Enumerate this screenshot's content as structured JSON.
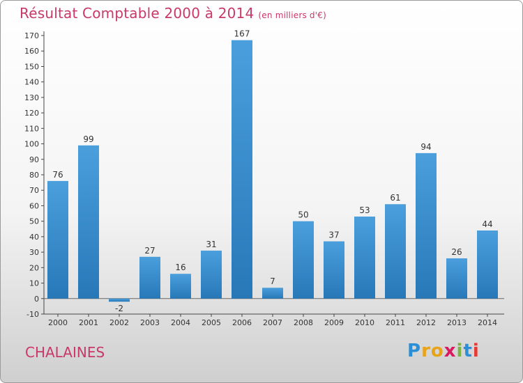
{
  "header": {
    "title": "Résultat Comptable 2000 à 2014",
    "unit": "(en milliers d'€)"
  },
  "footer": {
    "city": "CHALAINES",
    "logo_letters": [
      "P",
      "r",
      "o",
      "x",
      "i",
      "t",
      "i"
    ],
    "logo_colors": [
      "#2a8fd6",
      "#e8a317",
      "#e8a317",
      "#d81b60",
      "#7cb342",
      "#2a8fd6",
      "#e53935"
    ]
  },
  "chart_data": {
    "type": "bar",
    "categories": [
      "2000",
      "2001",
      "2002",
      "2003",
      "2004",
      "2005",
      "2006",
      "2007",
      "2008",
      "2009",
      "2010",
      "2011",
      "2012",
      "2013",
      "2014"
    ],
    "values": [
      76,
      99,
      -2,
      27,
      16,
      31,
      167,
      7,
      50,
      37,
      53,
      61,
      94,
      26,
      44
    ],
    "ylim": [
      -10,
      170
    ],
    "yticks": [
      -10,
      0,
      10,
      20,
      30,
      40,
      50,
      60,
      70,
      80,
      90,
      100,
      110,
      120,
      130,
      140,
      150,
      160,
      170
    ],
    "grid": false,
    "bar_color": "#4a9fdc",
    "bar_color_dark": "#2878b8"
  }
}
